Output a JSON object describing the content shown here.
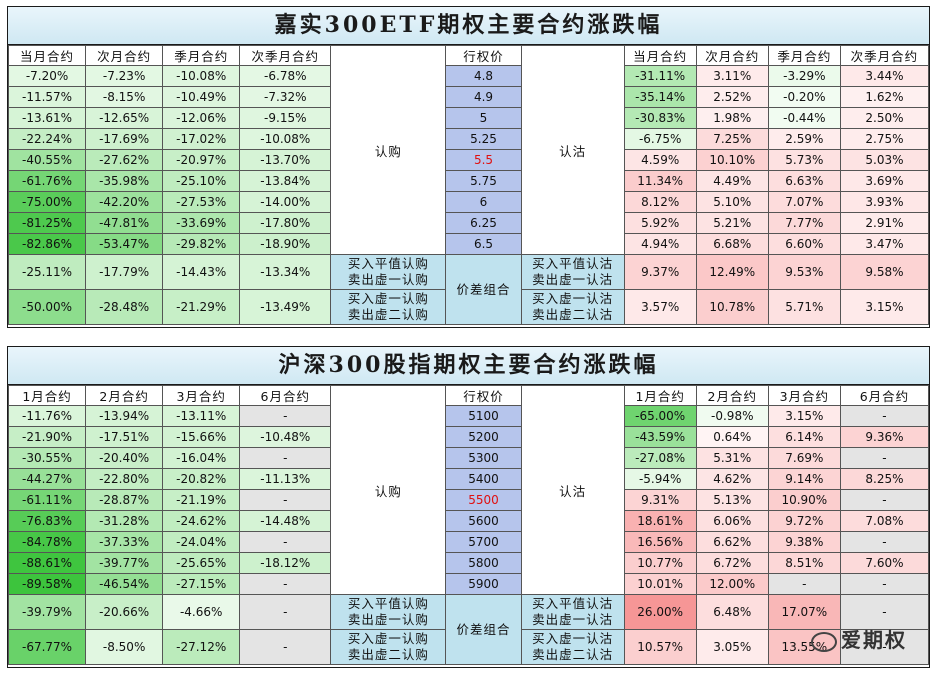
{
  "tables": [
    {
      "title": "嘉实300ETF期权主要合约涨跌幅",
      "left_headers": [
        "当月合约",
        "次月合约",
        "季月合约",
        "次季月合约"
      ],
      "strike_header": "行权价",
      "right_headers": [
        "当月合约",
        "次月合约",
        "季月合约",
        "次季月合约"
      ],
      "call_label": "认购",
      "put_label": "认沽",
      "combo_label": "价差组合",
      "atm_index": 4,
      "rows": [
        {
          "strike": "4.8",
          "calls": [
            "-7.20%",
            "-7.23%",
            "-10.08%",
            "-6.78%"
          ],
          "puts": [
            "-31.11%",
            "3.11%",
            "-3.29%",
            "3.44%"
          ]
        },
        {
          "strike": "4.9",
          "calls": [
            "-11.57%",
            "-8.15%",
            "-10.49%",
            "-7.32%"
          ],
          "puts": [
            "-35.14%",
            "2.52%",
            "-0.20%",
            "1.62%"
          ]
        },
        {
          "strike": "5",
          "calls": [
            "-13.61%",
            "-12.65%",
            "-12.06%",
            "-9.15%"
          ],
          "puts": [
            "-30.83%",
            "1.98%",
            "-0.44%",
            "2.50%"
          ]
        },
        {
          "strike": "5.25",
          "calls": [
            "-22.24%",
            "-17.69%",
            "-17.02%",
            "-10.08%"
          ],
          "puts": [
            "-6.75%",
            "7.25%",
            "2.59%",
            "2.75%"
          ]
        },
        {
          "strike": "5.5",
          "calls": [
            "-40.55%",
            "-27.62%",
            "-20.97%",
            "-13.70%"
          ],
          "puts": [
            "4.59%",
            "10.10%",
            "5.73%",
            "5.03%"
          ]
        },
        {
          "strike": "5.75",
          "calls": [
            "-61.76%",
            "-35.98%",
            "-25.10%",
            "-13.84%"
          ],
          "puts": [
            "11.34%",
            "4.49%",
            "6.63%",
            "3.69%"
          ]
        },
        {
          "strike": "6",
          "calls": [
            "-75.00%",
            "-42.20%",
            "-27.53%",
            "-14.00%"
          ],
          "puts": [
            "8.12%",
            "5.10%",
            "7.07%",
            "3.93%"
          ]
        },
        {
          "strike": "6.25",
          "calls": [
            "-81.25%",
            "-47.81%",
            "-33.69%",
            "-17.80%"
          ],
          "puts": [
            "5.92%",
            "5.21%",
            "7.77%",
            "2.91%"
          ]
        },
        {
          "strike": "6.5",
          "calls": [
            "-82.86%",
            "-53.47%",
            "-29.82%",
            "-18.90%"
          ],
          "puts": [
            "4.94%",
            "6.68%",
            "6.60%",
            "3.47%"
          ]
        }
      ],
      "combos": [
        {
          "call_desc": [
            "买入平值认购",
            "卖出虚一认购"
          ],
          "put_desc": [
            "买入平值认沽",
            "卖出虚一认沽"
          ],
          "calls": [
            "-25.11%",
            "-17.79%",
            "-14.43%",
            "-13.34%"
          ],
          "puts": [
            "9.37%",
            "12.49%",
            "9.53%",
            "9.58%"
          ]
        },
        {
          "call_desc": [
            "买入虚一认购",
            "卖出虚二认购"
          ],
          "put_desc": [
            "买入虚一认沽",
            "卖出虚二认沽"
          ],
          "calls": [
            "-50.00%",
            "-28.48%",
            "-21.29%",
            "-13.49%"
          ],
          "puts": [
            "3.57%",
            "10.78%",
            "5.71%",
            "3.15%"
          ]
        }
      ]
    },
    {
      "title": "沪深300股指期权主要合约涨跌幅",
      "left_headers": [
        "1月合约",
        "2月合约",
        "3月合约",
        "6月合约"
      ],
      "strike_header": "行权价",
      "right_headers": [
        "1月合约",
        "2月合约",
        "3月合约",
        "6月合约"
      ],
      "call_label": "认购",
      "put_label": "认沽",
      "combo_label": "价差组合",
      "atm_index": 4,
      "rows": [
        {
          "strike": "5100",
          "calls": [
            "-11.76%",
            "-13.94%",
            "-13.11%",
            "-"
          ],
          "puts": [
            "-65.00%",
            "-0.98%",
            "3.15%",
            "-"
          ]
        },
        {
          "strike": "5200",
          "calls": [
            "-21.90%",
            "-17.51%",
            "-15.66%",
            "-10.48%"
          ],
          "puts": [
            "-43.59%",
            "0.64%",
            "6.14%",
            "9.36%"
          ]
        },
        {
          "strike": "5300",
          "calls": [
            "-30.55%",
            "-20.40%",
            "-16.04%",
            "-"
          ],
          "puts": [
            "-27.08%",
            "5.31%",
            "7.69%",
            "-"
          ]
        },
        {
          "strike": "5400",
          "calls": [
            "-44.27%",
            "-22.80%",
            "-20.82%",
            "-11.13%"
          ],
          "puts": [
            "-5.94%",
            "4.62%",
            "9.14%",
            "8.25%"
          ]
        },
        {
          "strike": "5500",
          "calls": [
            "-61.11%",
            "-28.87%",
            "-21.19%",
            "-"
          ],
          "puts": [
            "9.31%",
            "5.13%",
            "10.90%",
            "-"
          ]
        },
        {
          "strike": "5600",
          "calls": [
            "-76.83%",
            "-31.28%",
            "-24.62%",
            "-14.48%"
          ],
          "puts": [
            "18.61%",
            "6.06%",
            "9.72%",
            "7.08%"
          ]
        },
        {
          "strike": "5700",
          "calls": [
            "-84.78%",
            "-37.33%",
            "-24.04%",
            "-"
          ],
          "puts": [
            "16.56%",
            "6.62%",
            "9.38%",
            "-"
          ]
        },
        {
          "strike": "5800",
          "calls": [
            "-88.61%",
            "-39.77%",
            "-25.65%",
            "-18.12%"
          ],
          "puts": [
            "10.77%",
            "6.72%",
            "8.51%",
            "7.60%"
          ]
        },
        {
          "strike": "5900",
          "calls": [
            "-89.58%",
            "-46.54%",
            "-27.15%",
            "-"
          ],
          "puts": [
            "10.01%",
            "12.00%",
            "-",
            "-"
          ]
        }
      ],
      "combos": [
        {
          "call_desc": [
            "买入平值认购",
            "卖出虚一认购"
          ],
          "put_desc": [
            "买入平值认沽",
            "卖出虚一认沽"
          ],
          "calls": [
            "-39.79%",
            "-20.66%",
            "-4.66%",
            "-"
          ],
          "puts": [
            "26.00%",
            "6.48%",
            "17.07%",
            "-"
          ]
        },
        {
          "call_desc": [
            "买入虚一认购",
            "卖出虚二认购"
          ],
          "put_desc": [
            "买入虚一认沽",
            "卖出虚二认沽"
          ],
          "calls": [
            "-67.77%",
            "-8.50%",
            "-27.12%",
            "-"
          ],
          "puts": [
            "10.57%",
            "3.05%",
            "13.55%",
            "-"
          ]
        }
      ]
    }
  ],
  "watermark": "爱期权",
  "colors": {
    "negative": "#2db52d",
    "positive": "#f08080",
    "mid_cell": "#bfe2ee",
    "strike_cell": "#b6c5ec",
    "atm_text": "#e01010",
    "missing": "#e4e4e4"
  }
}
